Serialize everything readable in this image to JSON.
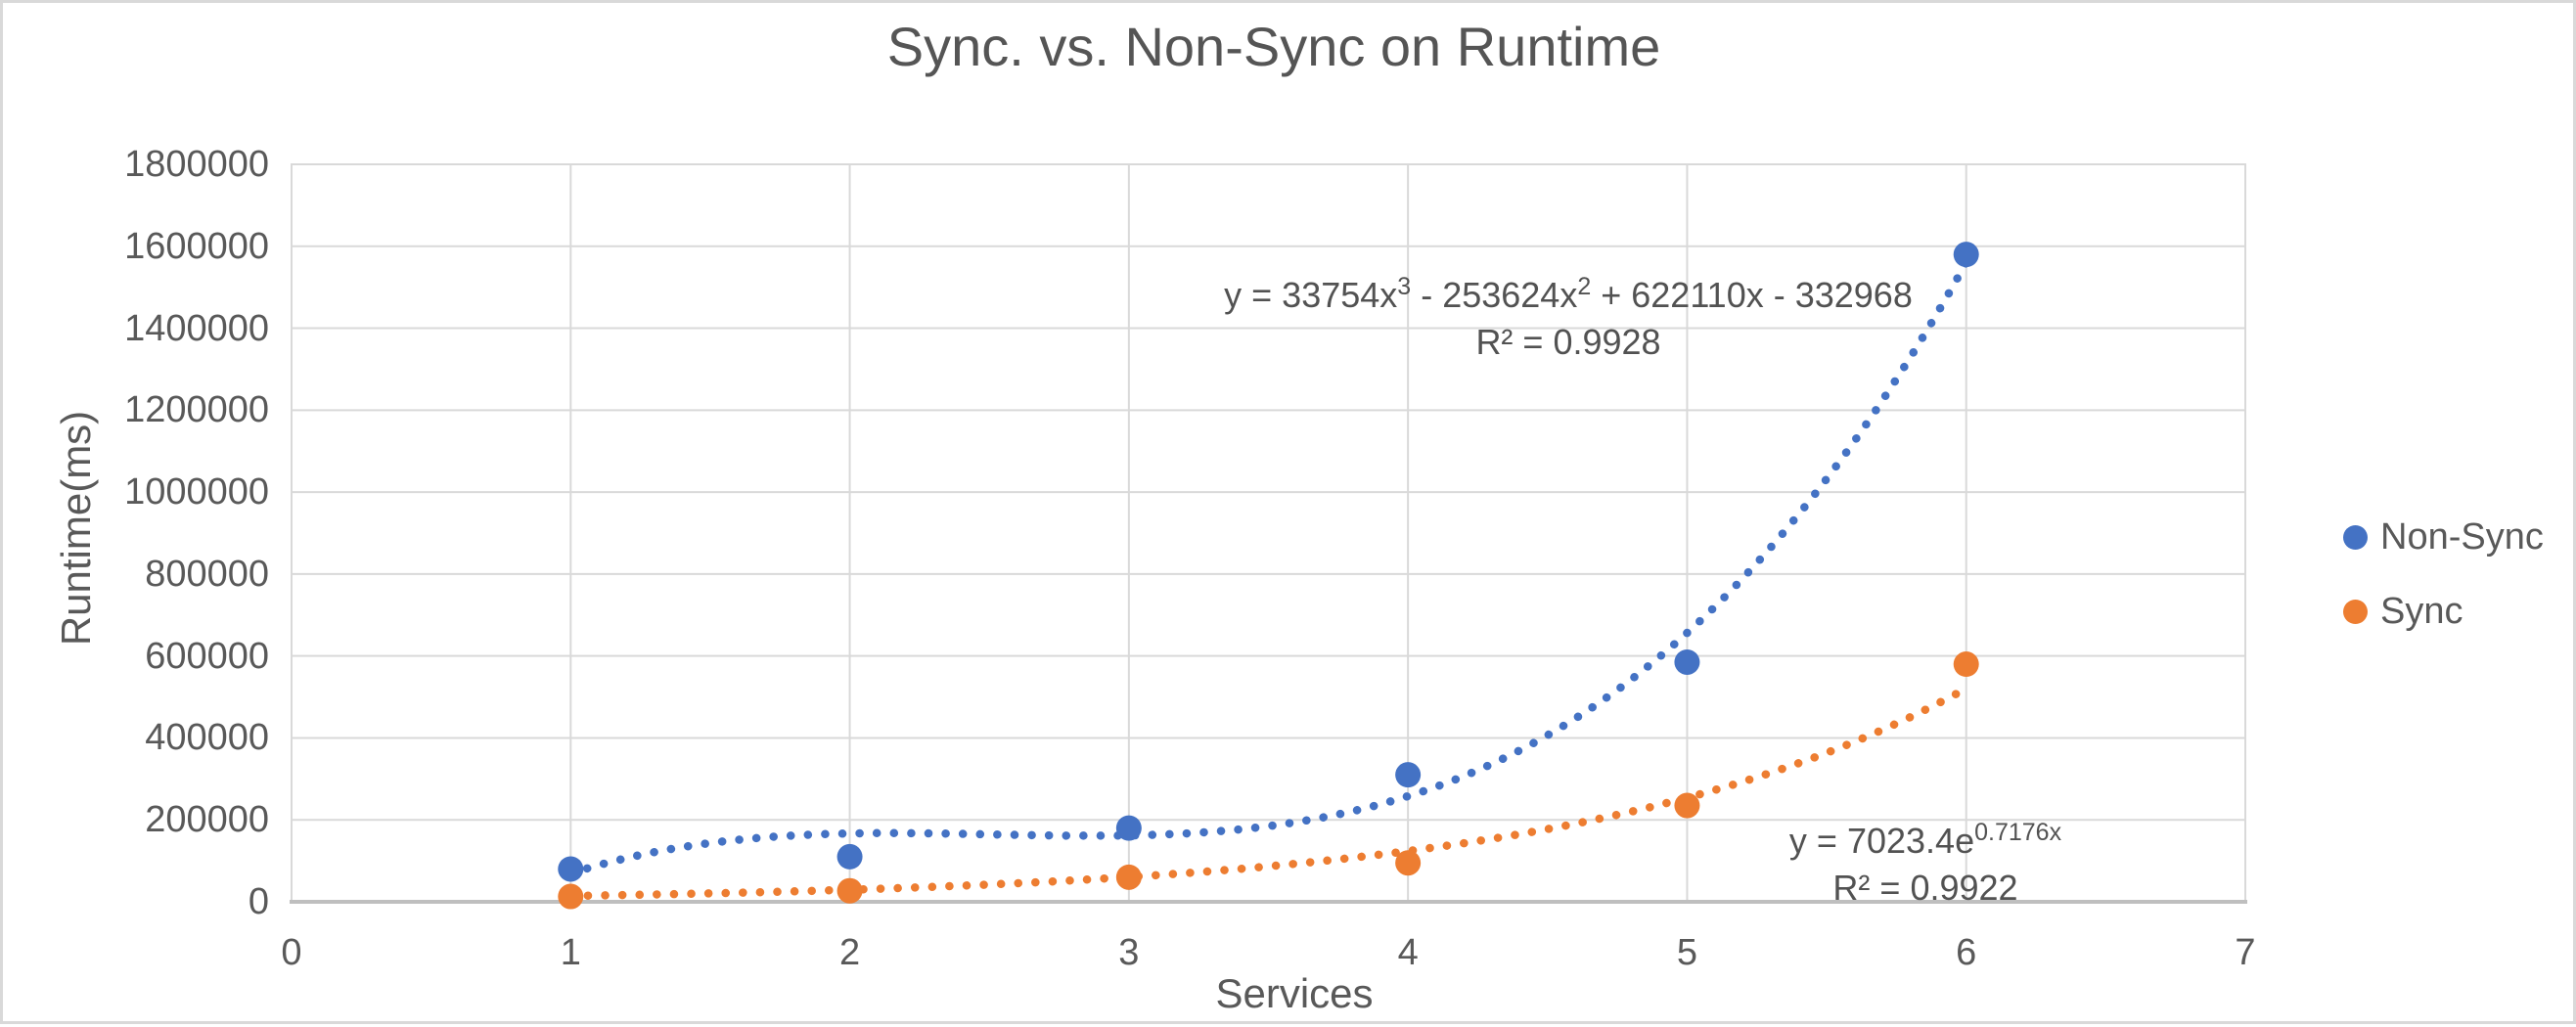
{
  "chart_data": {
    "type": "scatter",
    "title": "Sync. vs. Non-Sync on Runtime",
    "xlabel": "Services",
    "ylabel": "Runtime(ms)",
    "xlim": [
      0,
      7
    ],
    "ylim": [
      0,
      1800000
    ],
    "x_tick_step": 1,
    "y_tick_step": 200000,
    "grid": true,
    "legend_position": "right",
    "x_tick_labels": [
      "0",
      "1",
      "2",
      "3",
      "4",
      "5",
      "6",
      "7"
    ],
    "y_tick_labels": [
      "0",
      "200000",
      "400000",
      "600000",
      "800000",
      "1000000",
      "1200000",
      "1400000",
      "1600000",
      "1800000"
    ],
    "series": [
      {
        "name": "Non-Sync",
        "slug": "non-sync",
        "color": "#4472C4",
        "x": [
          1,
          2,
          3,
          4,
          5,
          6
        ],
        "values": [
          80000,
          110000,
          180000,
          310000,
          585000,
          1580000
        ],
        "trendline": {
          "type": "polynomial",
          "coefficients": [
            33754,
            -253624,
            622110,
            -332968
          ],
          "range": [
            1,
            6
          ],
          "equation": {
            "p1": "y = 33754x",
            "s1": "3",
            "p2": " - 253624x",
            "s2": "2",
            "p3": " + 622110x - 332968"
          },
          "r_squared": "R² = 0.9928"
        }
      },
      {
        "name": "Sync",
        "slug": "sync",
        "color": "#ED7D31",
        "x": [
          1,
          2,
          3,
          4,
          5,
          6
        ],
        "values": [
          13000,
          27000,
          60000,
          95000,
          235000,
          580000
        ],
        "trendline": {
          "type": "exponential",
          "a": 7023.4,
          "b": 0.7176,
          "range": [
            1,
            6
          ],
          "equation": {
            "p1": "y = 7023.4e",
            "s1": "0.7176x"
          },
          "r_squared": "R² = 0.9922"
        }
      }
    ],
    "style_colors": {
      "gridline": "#d9d9d9",
      "plot_border": "#d9d9d9",
      "axis_line": "#bfbfbf",
      "text": "#595959"
    }
  }
}
